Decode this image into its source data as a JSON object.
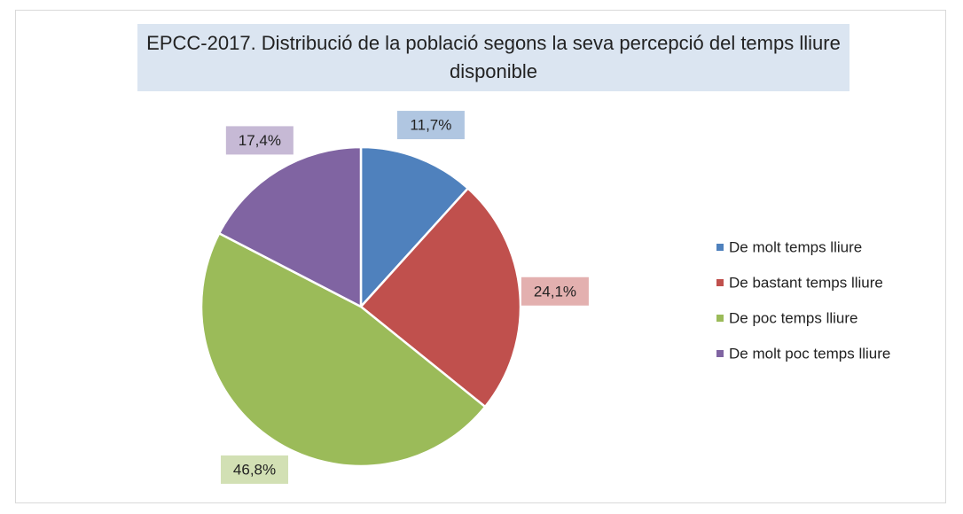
{
  "chart_data": {
    "type": "pie",
    "title": "EPCC-2017. Distribució de la població segons la seva percepció del temps lliure disponible",
    "categories": [
      "De molt temps lliure",
      "De bastant temps lliure",
      "De poc temps lliure",
      "De molt poc temps lliure"
    ],
    "values": [
      11.7,
      24.1,
      46.8,
      17.4
    ],
    "value_labels": [
      "11,7%",
      "24,1%",
      "46,8%",
      "17,4%"
    ],
    "colors": [
      "#4f81bd",
      "#c0504d",
      "#9bbb59",
      "#8064a2"
    ],
    "legend": "right"
  }
}
